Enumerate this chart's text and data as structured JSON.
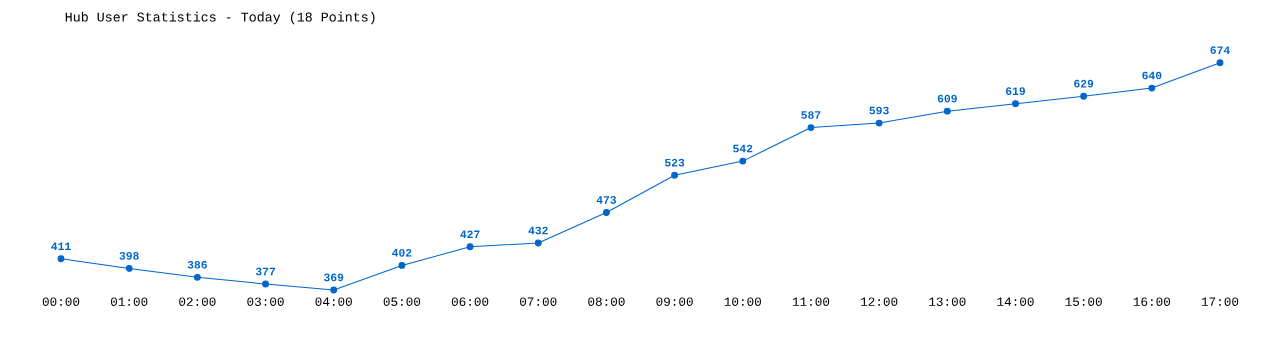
{
  "chart_data": {
    "type": "line",
    "title": "Hub User Statistics - Today (18 Points)",
    "categories": [
      "00:00",
      "01:00",
      "02:00",
      "03:00",
      "04:00",
      "05:00",
      "06:00",
      "07:00",
      "08:00",
      "09:00",
      "10:00",
      "11:00",
      "12:00",
      "13:00",
      "14:00",
      "15:00",
      "16:00",
      "17:00"
    ],
    "values": [
      411,
      398,
      386,
      377,
      369,
      402,
      427,
      432,
      473,
      523,
      542,
      587,
      593,
      609,
      619,
      629,
      640,
      674
    ],
    "color": "#0066cc",
    "marker": "circle",
    "data_labels": true
  }
}
